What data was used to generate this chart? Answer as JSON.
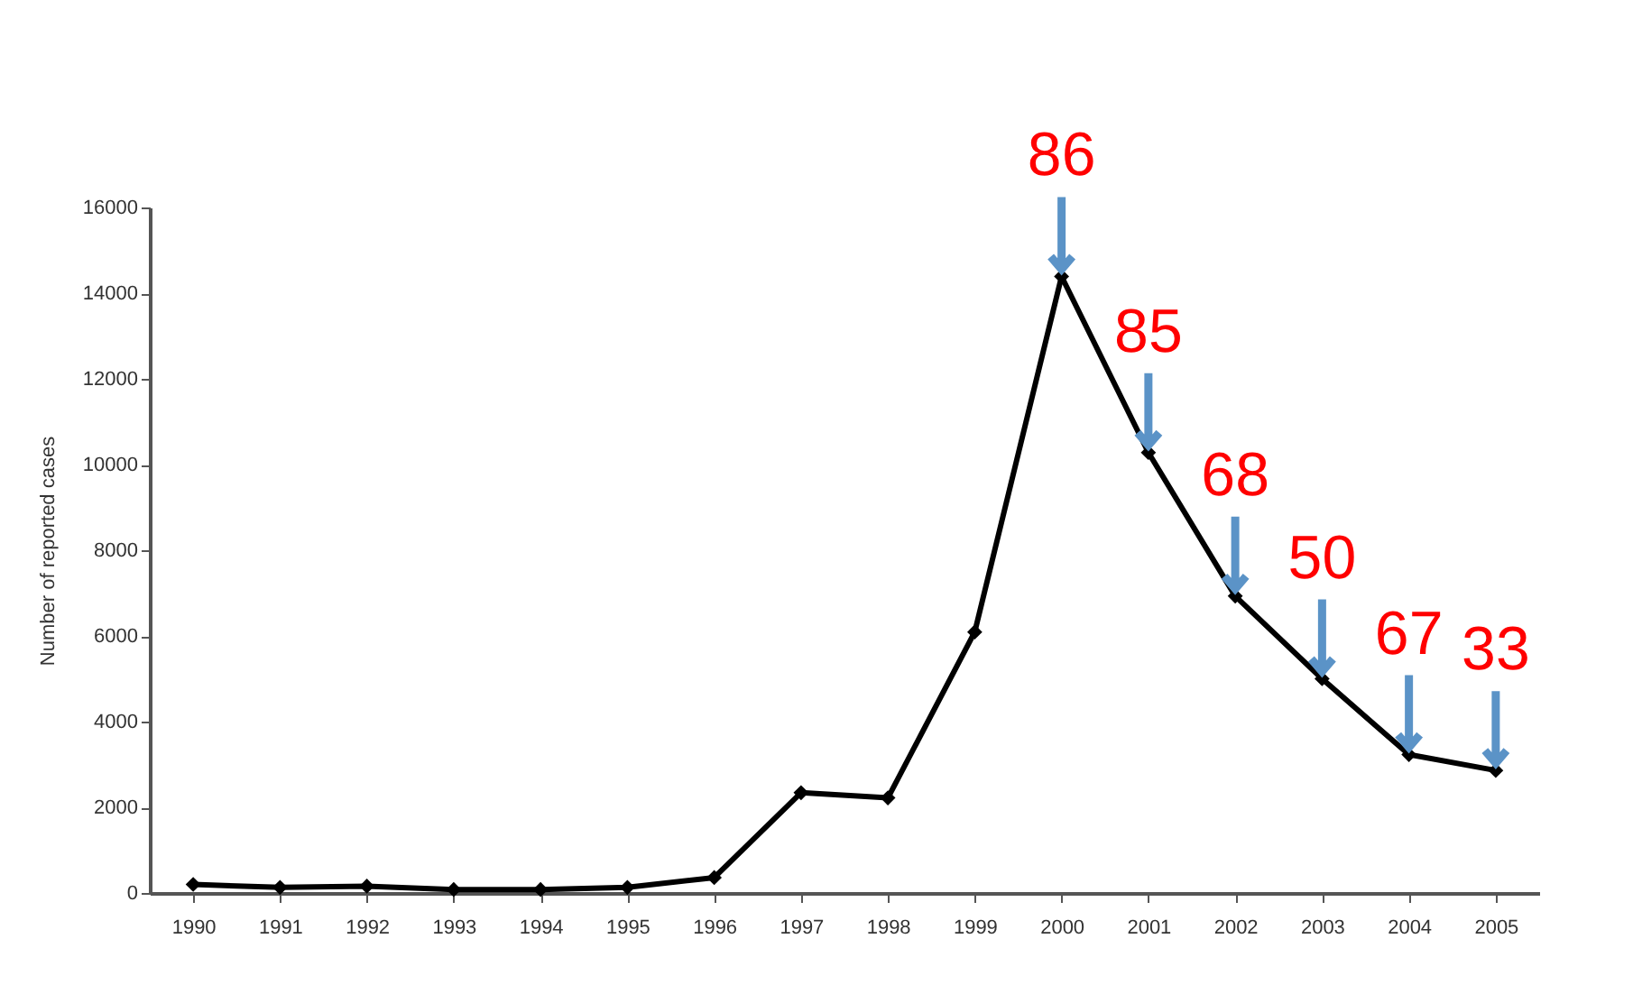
{
  "chart_data": {
    "type": "line",
    "ylabel": "Number of reported cases",
    "categories": [
      "1990",
      "1991",
      "1992",
      "1993",
      "1994",
      "1995",
      "1996",
      "1997",
      "1998",
      "1999",
      "2000",
      "2001",
      "2002",
      "2003",
      "2004",
      "2005"
    ],
    "series": [
      {
        "color": "#000000",
        "values": [
          200,
          130,
          160,
          80,
          80,
          130,
          360,
          2340,
          2220,
          6090,
          14390,
          10280,
          6930,
          5000,
          3230,
          2860
        ]
      }
    ],
    "ylim": [
      0,
      16000
    ],
    "yticks": [
      0,
      2000,
      4000,
      6000,
      8000,
      10000,
      12000,
      14000,
      16000
    ],
    "marker": "diamond",
    "grid": false,
    "annotations": [
      {
        "text": "86",
        "x": "2000",
        "y": 14390
      },
      {
        "text": "85",
        "x": "2001",
        "y": 10280
      },
      {
        "text": "68",
        "x": "2002",
        "y": 6930
      },
      {
        "text": "50",
        "x": "2003",
        "y": 5000
      },
      {
        "text": "67",
        "x": "2004",
        "y": 3230
      },
      {
        "text": "33",
        "x": "2005",
        "y": 2860
      }
    ]
  }
}
